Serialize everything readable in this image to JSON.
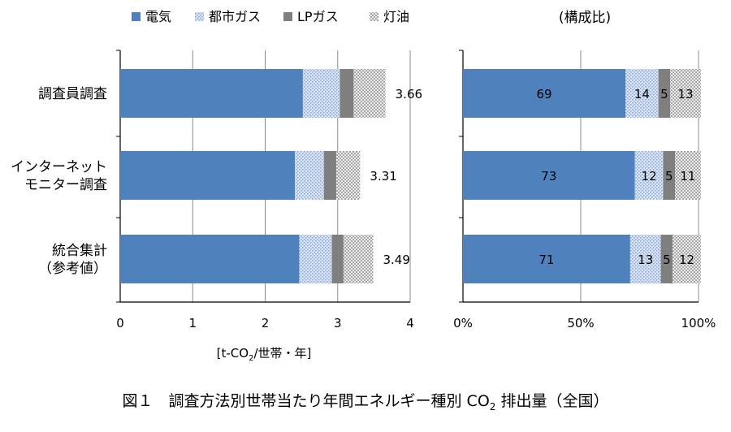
{
  "figure": {
    "caption_prefix": "図１",
    "caption_text": "調査方法別世帯当たり年間エネルギー種別 CO",
    "caption_sub": "2",
    "caption_suffix": " 排出量（全国）"
  },
  "legend": [
    {
      "label": "電気",
      "color": "#4f81bd",
      "pattern": "solid"
    },
    {
      "label": "都市ガス",
      "color": "#b8cce4",
      "pattern": "dots"
    },
    {
      "label": "LPガス",
      "color": "#7f7f7f",
      "pattern": "solid"
    },
    {
      "label": "灯油",
      "color": "#d9d9d9",
      "pattern": "checker"
    }
  ],
  "chart_data": [
    {
      "type": "bar",
      "orientation": "horizontal",
      "stacked": true,
      "categories": [
        [
          "調査員調査"
        ],
        [
          "インターネット",
          "モニター調査"
        ],
        [
          "統合集計",
          "（参考値）"
        ]
      ],
      "series": [
        {
          "name": "電気",
          "values": [
            2.52,
            2.41,
            2.47
          ]
        },
        {
          "name": "都市ガス",
          "values": [
            0.51,
            0.4,
            0.45
          ]
        },
        {
          "name": "LPガス",
          "values": [
            0.19,
            0.17,
            0.16
          ]
        },
        {
          "name": "灯油",
          "values": [
            0.44,
            0.33,
            0.41
          ]
        }
      ],
      "totals": [
        "3.66",
        "3.31",
        "3.49"
      ],
      "xlabel": "[t-CO2/世帯・年]",
      "xlabel_parts": [
        "[t-CO",
        "2",
        "/世帯・年]"
      ],
      "xlim": [
        0,
        4
      ],
      "xticks": [
        "0",
        "1",
        "2",
        "3",
        "4"
      ],
      "grid": true
    },
    {
      "type": "bar",
      "orientation": "horizontal",
      "stacked": true,
      "percent": true,
      "title": "(構成比)",
      "categories": [
        [
          "調査員調査"
        ],
        [
          "インターネット",
          "モニター調査"
        ],
        [
          "統合集計",
          "（参考値）"
        ]
      ],
      "series": [
        {
          "name": "電気",
          "values": [
            69,
            73,
            71
          ]
        },
        {
          "name": "都市ガス",
          "values": [
            14,
            12,
            13
          ]
        },
        {
          "name": "LPガス",
          "values": [
            5,
            5,
            5
          ]
        },
        {
          "name": "灯油",
          "values": [
            13,
            11,
            12
          ]
        }
      ],
      "xlim": [
        0,
        100
      ],
      "xticks": [
        "0%",
        "50%",
        "100%"
      ],
      "grid": true
    }
  ]
}
